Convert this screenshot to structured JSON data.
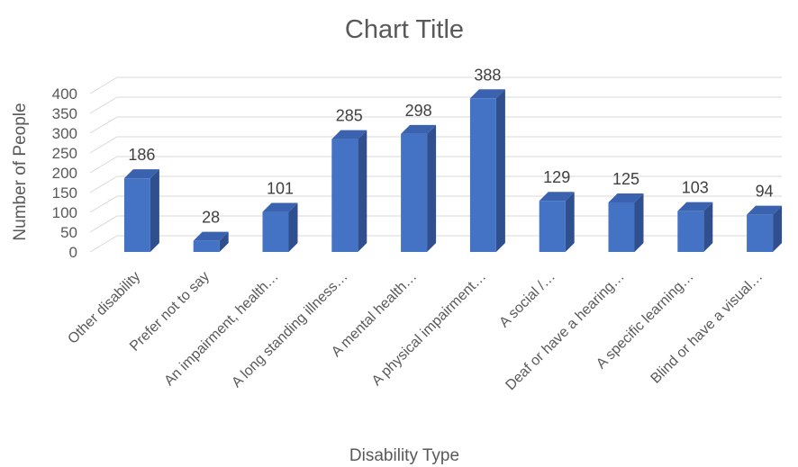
{
  "chart_data": {
    "type": "bar",
    "title": "Chart Title",
    "xlabel": "Disability Type",
    "ylabel": "Number of People",
    "ylim": [
      0,
      400
    ],
    "yticks": [
      0,
      50,
      100,
      150,
      200,
      250,
      300,
      350,
      400
    ],
    "grid": true,
    "legend": "none",
    "three_d": true,
    "categories": [
      "Other disability",
      "Prefer not to say",
      "An impairment, health…",
      "A long standing illness…",
      "A mental health…",
      "A physical impairment…",
      "A social /…",
      "Deaf or have a hearing…",
      "A specific learning…",
      "Blind or have a visual…"
    ],
    "values": [
      186,
      28,
      101,
      285,
      298,
      388,
      129,
      125,
      103,
      94
    ],
    "colors": {
      "bar_front": "#4472c4",
      "bar_side": "#2f4f8f",
      "bar_top": "#3a62ae",
      "grid": "#d9d9d9",
      "text": "#595959"
    }
  }
}
